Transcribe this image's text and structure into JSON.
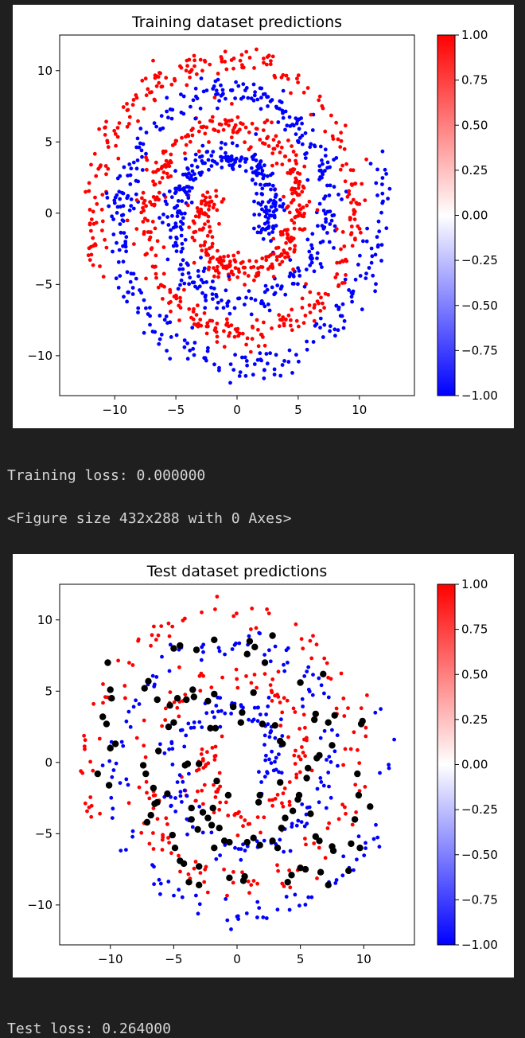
{
  "chart_data": [
    {
      "type": "scatter",
      "title": "Training dataset predictions",
      "xlim": [
        -14.5,
        14.5
      ],
      "ylim": [
        -12.8,
        12.5
      ],
      "xticks": [
        -10,
        -5,
        0,
        5,
        10
      ],
      "yticks": [
        -10,
        -5,
        0,
        5,
        10
      ],
      "xtick_labels": [
        "−10",
        "−5",
        "0",
        "5",
        "10"
      ],
      "ytick_labels": [
        "−10",
        "−5",
        "0",
        "5",
        "10"
      ],
      "colormap": "bwr",
      "colorbar": {
        "min": -1.0,
        "max": 1.0,
        "ticks": [
          1.0,
          0.75,
          0.5,
          0.25,
          0.0,
          -0.25,
          -0.5,
          -0.75,
          -1.0
        ],
        "tick_labels": [
          "1.00",
          "0.75",
          "0.50",
          "0.25",
          "0.00",
          "−0.25",
          "−0.50",
          "−0.75",
          "−1.00"
        ]
      },
      "colors": {
        "positive": "#ff0000",
        "negative": "#0000ff",
        "misclassified": "#000000"
      },
      "description": "two interleaved spirals; points colored by predicted class (+1 red, -1 blue)",
      "misclassified_points": []
    },
    {
      "type": "scatter",
      "title": "Test dataset predictions",
      "xlim": [
        -14,
        14
      ],
      "ylim": [
        -12.8,
        12.5
      ],
      "xticks": [
        -10,
        -5,
        0,
        5,
        10
      ],
      "yticks": [
        -10,
        -5,
        0,
        5,
        10
      ],
      "xtick_labels": [
        "−10",
        "−5",
        "0",
        "5",
        "10"
      ],
      "ytick_labels": [
        "−10",
        "−5",
        "0",
        "5",
        "10"
      ],
      "colormap": "bwr",
      "colorbar": {
        "min": -1.0,
        "max": 1.0,
        "ticks": [
          1.0,
          0.75,
          0.5,
          0.25,
          0.0,
          -0.25,
          -0.5,
          -0.75,
          -1.0
        ],
        "tick_labels": [
          "1.00",
          "0.75",
          "0.50",
          "0.25",
          "0.00",
          "−0.25",
          "−0.50",
          "−0.75",
          "−1.00"
        ]
      },
      "colors": {
        "positive": "#ff0000",
        "negative": "#0000ff",
        "misclassified": "#000000"
      },
      "description": "two interleaved spirals; test points colored by prediction, larger black markers = misclassified",
      "misclassified_points": [
        [
          -10.2,
          7.0
        ],
        [
          -10.0,
          5.1
        ],
        [
          -9.9,
          4.5
        ],
        [
          -10.6,
          3.2
        ],
        [
          -10.3,
          2.7
        ],
        [
          -10.0,
          1.0
        ],
        [
          -9.6,
          1.3
        ],
        [
          -11.0,
          -0.8
        ],
        [
          -10.1,
          -1.6
        ],
        [
          -7.0,
          5.7
        ],
        [
          -7.3,
          5.2
        ],
        [
          -6.3,
          4.4
        ],
        [
          -5.3,
          4.0
        ],
        [
          -4.7,
          4.5
        ],
        [
          -5.0,
          2.8
        ],
        [
          -5.4,
          2.5
        ],
        [
          -6.2,
          0.8
        ],
        [
          -7.4,
          -0.2
        ],
        [
          -7.2,
          -0.8
        ],
        [
          -6.6,
          -1.8
        ],
        [
          -6.3,
          -2.8
        ],
        [
          -6.5,
          -2.9
        ],
        [
          -5.5,
          -2.2
        ],
        [
          -6.8,
          -3.7
        ],
        [
          -7.1,
          -4.2
        ],
        [
          -5.1,
          -5.1
        ],
        [
          -4.9,
          -6.0
        ],
        [
          -4.5,
          -6.9
        ],
        [
          -4.2,
          -7.1
        ],
        [
          -3.8,
          -8.4
        ],
        [
          -3.0,
          -8.6
        ],
        [
          -5.0,
          8.0
        ],
        [
          -4.5,
          8.2
        ],
        [
          -3.2,
          7.9
        ],
        [
          -1.8,
          8.6
        ],
        [
          0.8,
          7.6
        ],
        [
          1.4,
          8.1
        ],
        [
          1.0,
          8.5
        ],
        [
          2.8,
          8.9
        ],
        [
          2.2,
          7.0
        ],
        [
          1.3,
          4.9
        ],
        [
          0.4,
          3.5
        ],
        [
          -0.3,
          3.9
        ],
        [
          -1.8,
          4.8
        ],
        [
          -2.3,
          4.3
        ],
        [
          -3.4,
          4.6
        ],
        [
          -4.0,
          4.4
        ],
        [
          -3.5,
          5.1
        ],
        [
          0.3,
          2.8
        ],
        [
          2.0,
          2.7
        ],
        [
          3.0,
          2.6
        ],
        [
          3.4,
          1.5
        ],
        [
          3.6,
          1.3
        ],
        [
          5.0,
          5.6
        ],
        [
          6.2,
          3.4
        ],
        [
          6.1,
          3.0
        ],
        [
          7.2,
          2.8
        ],
        [
          7.7,
          3.3
        ],
        [
          7.5,
          1.2
        ],
        [
          6.5,
          0.5
        ],
        [
          6.3,
          0.3
        ],
        [
          5.6,
          -0.4
        ],
        [
          5.5,
          -1.1
        ],
        [
          4.9,
          -2.3
        ],
        [
          4.8,
          -2.6
        ],
        [
          4.4,
          -3.4
        ],
        [
          3.8,
          -3.9
        ],
        [
          3.5,
          -4.6
        ],
        [
          2.8,
          -5.5
        ],
        [
          3.2,
          -6.0
        ],
        [
          1.8,
          -5.8
        ],
        [
          1.3,
          -5.3
        ],
        [
          0.8,
          -5.6
        ],
        [
          -0.6,
          -5.6
        ],
        [
          -1.0,
          -5.5
        ],
        [
          -1.4,
          -4.6
        ],
        [
          -2.0,
          -4.4
        ],
        [
          -2.3,
          -3.9
        ],
        [
          -2.7,
          -3.5
        ],
        [
          -3.6,
          -3.2
        ],
        [
          -3.6,
          -4.0
        ],
        [
          -4.1,
          -0.2
        ],
        [
          -3.9,
          -0.1
        ],
        [
          -3.0,
          -0.1
        ],
        [
          -1.9,
          -3.2
        ],
        [
          -1.6,
          -1.3
        ],
        [
          -0.7,
          -2.3
        ],
        [
          1.8,
          -2.3
        ],
        [
          1.7,
          -2.8
        ],
        [
          3.4,
          -1.4
        ],
        [
          5.8,
          -3.6
        ],
        [
          6.2,
          -5.2
        ],
        [
          6.5,
          -5.5
        ],
        [
          5.0,
          -7.4
        ],
        [
          5.4,
          -7.5
        ],
        [
          7.5,
          -5.9
        ],
        [
          7.6,
          -6.2
        ],
        [
          6.6,
          -7.7
        ],
        [
          7.2,
          -8.6
        ],
        [
          8.8,
          -7.6
        ],
        [
          9.0,
          -5.7
        ],
        [
          9.3,
          -4.0
        ],
        [
          9.7,
          -6.0
        ],
        [
          9.6,
          -2.3
        ],
        [
          9.5,
          -0.8
        ],
        [
          10.5,
          -3.1
        ],
        [
          9.8,
          2.7
        ],
        [
          9.9,
          2.9
        ],
        [
          6.8,
          6.2
        ],
        [
          4.3,
          -7.9
        ],
        [
          4.0,
          -8.4
        ],
        [
          0.6,
          -8.0
        ],
        [
          0.5,
          -8.3
        ],
        [
          -0.6,
          -8.1
        ],
        [
          -1.8,
          -6.0
        ],
        [
          -3.0,
          -7.3
        ],
        [
          -3.1,
          -4.7
        ],
        [
          -1.7,
          2.4
        ],
        [
          -2.1,
          2.4
        ]
      ]
    }
  ],
  "output": {
    "training_loss": "Training loss: 0.000000",
    "figure_note": "<Figure size 432x288 with 0 Axes>",
    "test_loss": "Test loss: 0.264000"
  }
}
